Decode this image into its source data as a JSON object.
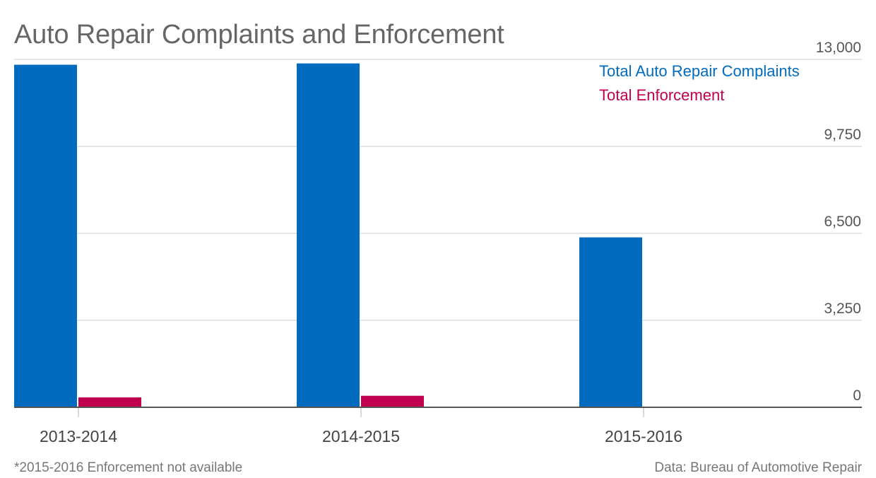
{
  "chart_data": {
    "type": "bar",
    "title": "Auto Repair Complaints and Enforcement",
    "categories": [
      "2013-2014",
      "2014-2015",
      "2015-2016"
    ],
    "series": [
      {
        "name": "Total Auto Repair Complaints",
        "color": "#006bbf",
        "values": [
          12800,
          12850,
          6350
        ]
      },
      {
        "name": "Total Enforcement",
        "color": "#c0004f",
        "values": [
          370,
          430,
          null
        ]
      }
    ],
    "yticks": [
      {
        "value": 0,
        "label": "0"
      },
      {
        "value": 3250,
        "label": "3,250"
      },
      {
        "value": 6500,
        "label": "6,500"
      },
      {
        "value": 9750,
        "label": "9,750"
      },
      {
        "value": 13000,
        "label": "13,000"
      }
    ],
    "ylim": [
      0,
      13000
    ],
    "y_axis_side": "right",
    "grid": true,
    "legend_placement": "top-right",
    "footnote": "*2015-2016 Enforcement not available",
    "source": "Data: Bureau of Automotive Repair"
  }
}
